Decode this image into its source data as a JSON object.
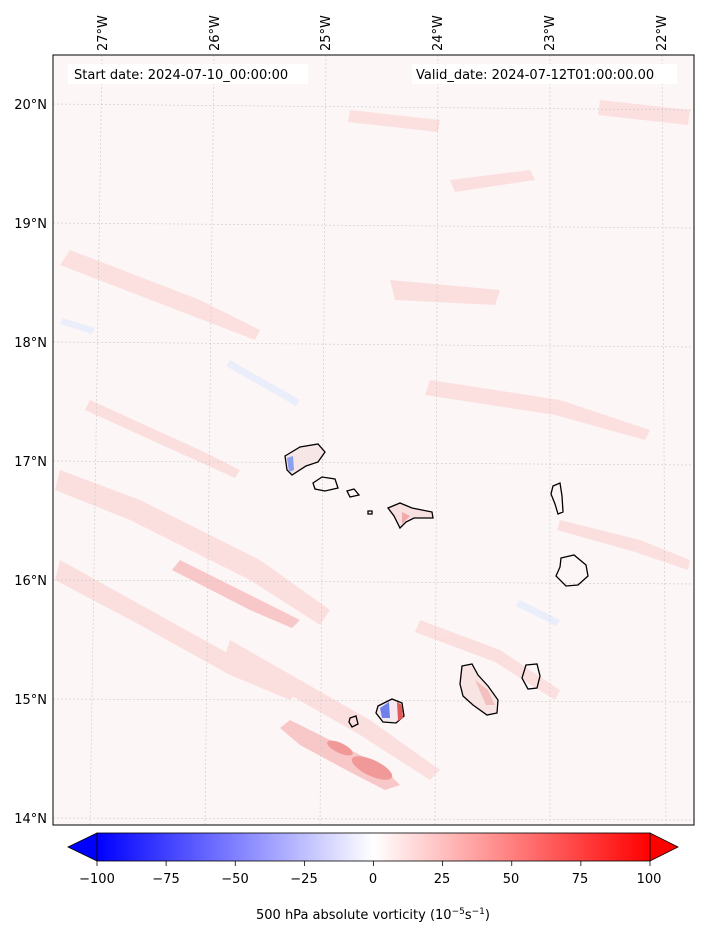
{
  "header": {
    "start_label": "Start date: 2024-07-10_00:00:00",
    "valid_label": "Valid_date: 2024-07-12T01:00:00.00"
  },
  "map": {
    "lon_labels": [
      "27°W",
      "26°W",
      "25°W",
      "24°W",
      "23°W",
      "22°W"
    ],
    "lat_labels": [
      "20°N",
      "19°N",
      "18°N",
      "17°N",
      "16°N",
      "15°N",
      "14°N"
    ],
    "background_color": "#fdf6f6",
    "grid": true
  },
  "colorbar": {
    "ticks": [
      "−100",
      "−75",
      "−50",
      "−25",
      "0",
      "25",
      "50",
      "75",
      "100"
    ],
    "label": "500 hPa absolute vorticity (10$^{-5}$s$^{-1}$)",
    "label_main": "500 hPa absolute vorticity (10",
    "label_exp1": "−5",
    "label_mid": "s",
    "label_exp2": "−1",
    "label_end": ")",
    "min": -100,
    "max": 100,
    "colormap": "bwr",
    "extend": "both"
  }
}
